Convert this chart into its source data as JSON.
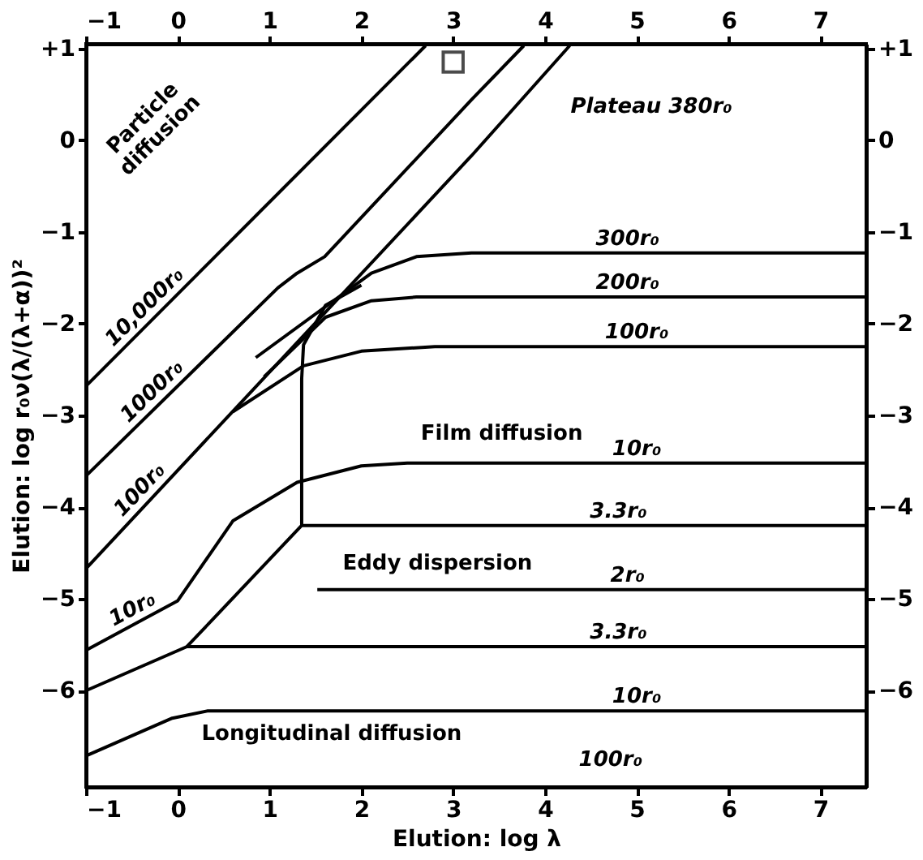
{
  "chart_data": {
    "type": "line",
    "xlabel": "Elution:  log λ",
    "ylabel": "Elution:  log r₀ν(λ/(λ+α))²",
    "xlim": [
      -1,
      7.5
    ],
    "ylim": [
      -7.05,
      1.05
    ],
    "xticks": [
      -1,
      0,
      1,
      2,
      3,
      4,
      5,
      6,
      7
    ],
    "yticks": [
      -6,
      -5,
      -4,
      -3,
      -2,
      -1,
      0,
      {
        "value": 1,
        "label": "+1"
      }
    ],
    "x2lim": [
      -1,
      7.5
    ],
    "x2ticks": [
      -1,
      0,
      1,
      2,
      3,
      4,
      5,
      6,
      7
    ],
    "y2lim": [
      -7.05,
      1.05
    ],
    "y2ticks": [
      -6,
      -5,
      -4,
      -3,
      -2,
      -1,
      0,
      {
        "value": 1,
        "label": "+1"
      }
    ],
    "grid": false,
    "marker": "none",
    "line_style": "solid",
    "series": [
      {
        "color": "#000000",
        "x": [
          -1,
          2.7
        ],
        "values": [
          -2.68,
          1.03
        ]
      },
      {
        "color": "#000000",
        "x": [
          -1,
          1.09,
          1.3,
          1.6,
          3.2,
          3.77
        ],
        "values": [
          -3.66,
          -1.61,
          -1.45,
          -1.27,
          0.44,
          1.03
        ]
      },
      {
        "color": "#000000",
        "x": [
          -1,
          3.2,
          4.27
        ],
        "values": [
          -4.67,
          -0.17,
          1.03
        ]
      },
      {
        "color": "#000000",
        "x": [
          -1,
          0,
          0.6,
          1.3,
          2.0,
          2.5,
          7.5
        ],
        "values": [
          -5.56,
          -5.02,
          -4.15,
          -3.73,
          -3.55,
          -3.52,
          -3.52
        ]
      },
      {
        "color": "#000000",
        "x": [
          -1,
          0.1,
          7.5
        ],
        "values": [
          -6.0,
          -5.52,
          -5.52
        ]
      },
      {
        "color": "#000000",
        "x": [
          0.1,
          1.35,
          7.5
        ],
        "values": [
          -5.52,
          -4.2,
          -4.2
        ]
      },
      {
        "color": "#000000",
        "x": [
          1.35,
          1.35,
          1.37,
          1.61,
          2.0
        ],
        "values": [
          -4.2,
          -2.6,
          -2.23,
          -1.8,
          -1.58
        ]
      },
      {
        "color": "#000000",
        "x": [
          0.85,
          2.11,
          2.6,
          3.2,
          7.5
        ],
        "values": [
          -2.37,
          -1.45,
          -1.27,
          -1.23,
          -1.23
        ]
      },
      {
        "color": "#000000",
        "x": [
          0.94,
          1.61,
          2.11,
          2.6,
          7.5
        ],
        "values": [
          -2.58,
          -1.93,
          -1.75,
          -1.71,
          -1.71
        ]
      },
      {
        "color": "#000000",
        "x": [
          0.6,
          1.37,
          2.0,
          2.8,
          7.5
        ],
        "values": [
          -2.96,
          -2.46,
          -2.3,
          -2.25,
          -2.25
        ]
      },
      {
        "color": "#000000",
        "x": [
          1.52,
          7.5
        ],
        "values": [
          -4.9,
          -4.9
        ]
      },
      {
        "color": "#000000",
        "x": [
          -1,
          -0.06,
          0.33,
          7.5
        ],
        "values": [
          -6.71,
          -6.3,
          -6.22,
          -6.22
        ]
      },
      {
        "type": "scatter",
        "marker": "square",
        "color": "#000000",
        "x": [
          3.0
        ],
        "values": [
          0.85
        ]
      }
    ],
    "annotations": [
      "Particle\ndiffusion",
      "Plateau 380r₀",
      "Film diffusion",
      "Eddy dispersion",
      "Longitudinal diffusion",
      "100r₀",
      {
        "text": "10,000r₀",
        "x": -0.25,
        "y": -1.93
      },
      {
        "text": "1000r₀",
        "x": -0.17,
        "y": -2.85
      },
      {
        "text": "100r₀",
        "x": -0.3,
        "y": -3.92
      },
      {
        "text": "10r₀",
        "x": -0.42,
        "y": -5.25
      },
      {
        "text": "300r₀",
        "x": 4.9,
        "y": -1.23
      },
      {
        "text": "200r₀",
        "x": 4.9,
        "y": -1.71
      },
      {
        "text": "100r₀",
        "x": 5.0,
        "y": -2.25
      },
      {
        "text": "10r₀",
        "x": 5.0,
        "y": -3.52
      },
      {
        "text": "3.3r₀",
        "x": 4.8,
        "y": -4.2
      },
      {
        "text": "2r₀",
        "x": 4.9,
        "y": -4.9
      },
      {
        "text": "3.3r₀",
        "x": 4.8,
        "y": -5.52
      },
      {
        "text": "10r₀",
        "x": 5.0,
        "y": -6.22
      }
    ]
  }
}
